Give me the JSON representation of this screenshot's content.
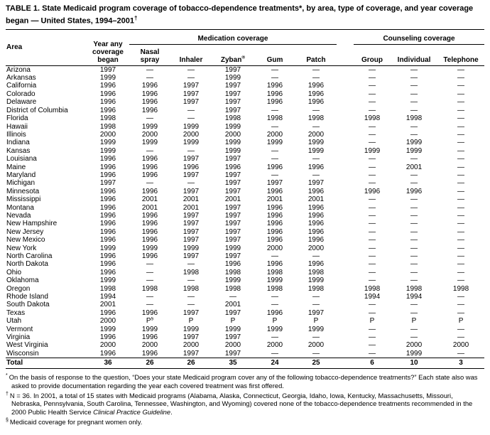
{
  "title": {
    "text": "TABLE 1. State Medicaid program coverage of tobacco-dependence treatments*, by area, type of coverage, and year coverage began — United States, 1994–2001",
    "sup": "†"
  },
  "table": {
    "groups": {
      "medication": "Medication coverage",
      "counseling": "Counseling coverage"
    },
    "headers": {
      "area": "Area",
      "year_began_lines": [
        "Year any",
        "coverage",
        "began"
      ],
      "nasal_lines": [
        "Nasal",
        "spray"
      ],
      "inhaler": "Inhaler",
      "zyban": "Zyban",
      "zyban_sup": "®",
      "gum": "Gum",
      "patch": "Patch",
      "group": "Group",
      "individual": "Individual",
      "telephone": "Telephone"
    },
    "rows": [
      [
        "Arizona",
        "1997",
        "—",
        "—",
        "1997",
        "—",
        "—",
        "—",
        "—",
        "—"
      ],
      [
        "Arkansas",
        "1999",
        "—",
        "—",
        "1999",
        "—",
        "—",
        "—",
        "—",
        "—"
      ],
      [
        "California",
        "1996",
        "1996",
        "1997",
        "1997",
        "1996",
        "1996",
        "—",
        "—",
        "—"
      ],
      [
        "Colorado",
        "1996",
        "1996",
        "1997",
        "1997",
        "1996",
        "1996",
        "—",
        "—",
        "—"
      ],
      [
        "Delaware",
        "1996",
        "1996",
        "1997",
        "1997",
        "1996",
        "1996",
        "—",
        "—",
        "—"
      ],
      [
        "District of Columbia",
        "1996",
        "1996",
        "—",
        "1997",
        "—",
        "—",
        "—",
        "—",
        "—"
      ],
      [
        "Florida",
        "1998",
        "—",
        "—",
        "1998",
        "1998",
        "1998",
        "1998",
        "1998",
        "—"
      ],
      [
        "Hawaii",
        "1998",
        "1999",
        "1999",
        "1999",
        "—",
        "—",
        "—",
        "—",
        "—"
      ],
      [
        "Illinois",
        "2000",
        "2000",
        "2000",
        "2000",
        "2000",
        "2000",
        "—",
        "—",
        "—"
      ],
      [
        "Indiana",
        "1999",
        "1999",
        "1999",
        "1999",
        "1999",
        "1999",
        "—",
        "1999",
        "—"
      ],
      [
        "Kansas",
        "1999",
        "—",
        "—",
        "1999",
        "—",
        "1999",
        "1999",
        "1999",
        "—"
      ],
      [
        "Louisiana",
        "1996",
        "1996",
        "1997",
        "1997",
        "—",
        "—",
        "—",
        "—",
        "—"
      ],
      [
        "Maine",
        "1996",
        "1996",
        "1996",
        "1996",
        "1996",
        "1996",
        "—",
        "2001",
        "—"
      ],
      [
        "Maryland",
        "1996",
        "1996",
        "1997",
        "1997",
        "—",
        "—",
        "—",
        "—",
        "—"
      ],
      [
        "Michigan",
        "1997",
        "—",
        "—",
        "1997",
        "1997",
        "1997",
        "—",
        "—",
        "—"
      ],
      [
        "Minnesota",
        "1996",
        "1996",
        "1997",
        "1997",
        "1996",
        "1996",
        "1996",
        "1996",
        "—"
      ],
      [
        "Mississippi",
        "1996",
        "2001",
        "2001",
        "2001",
        "2001",
        "2001",
        "—",
        "—",
        "—"
      ],
      [
        "Montana",
        "1996",
        "2001",
        "2001",
        "1997",
        "1996",
        "1996",
        "—",
        "—",
        "—"
      ],
      [
        "Nevada",
        "1996",
        "1996",
        "1997",
        "1997",
        "1996",
        "1996",
        "—",
        "—",
        "—"
      ],
      [
        "New Hampshire",
        "1996",
        "1996",
        "1997",
        "1997",
        "1996",
        "1996",
        "—",
        "—",
        "—"
      ],
      [
        "New Jersey",
        "1996",
        "1996",
        "1997",
        "1997",
        "1996",
        "1996",
        "—",
        "—",
        "—"
      ],
      [
        "New Mexico",
        "1996",
        "1996",
        "1997",
        "1997",
        "1996",
        "1996",
        "—",
        "—",
        "—"
      ],
      [
        "New York",
        "1999",
        "1999",
        "1999",
        "1999",
        "2000",
        "2000",
        "—",
        "—",
        "—"
      ],
      [
        "North Carolina",
        "1996",
        "1996",
        "1997",
        "1997",
        "—",
        "—",
        "—",
        "—",
        "—"
      ],
      [
        "North Dakota",
        "1996",
        "—",
        "—",
        "1996",
        "1996",
        "1996",
        "—",
        "—",
        "—"
      ],
      [
        "Ohio",
        "1996",
        "—",
        "1998",
        "1998",
        "1998",
        "1998",
        "—",
        "—",
        "—"
      ],
      [
        "Oklahoma",
        "1999",
        "—",
        "—",
        "1999",
        "1999",
        "1999",
        "—",
        "—",
        "—"
      ],
      [
        "Oregon",
        "1998",
        "1998",
        "1998",
        "1998",
        "1998",
        "1998",
        "1998",
        "1998",
        "1998"
      ],
      [
        "Rhode Island",
        "1994",
        "—",
        "—",
        "—",
        "—",
        "—",
        "1994",
        "1994",
        "—"
      ],
      [
        "South Dakota",
        "2001",
        "—",
        "—",
        "2001",
        "—",
        "—",
        "—",
        "—",
        "—"
      ],
      [
        "Texas",
        "1996",
        "1996",
        "1997",
        "1997",
        "1996",
        "1997",
        "—",
        "—",
        "—"
      ],
      [
        "Utah",
        "2000",
        "P§",
        "P",
        "P",
        "P",
        "P",
        "P",
        "P",
        "P"
      ],
      [
        "Vermont",
        "1999",
        "1999",
        "1999",
        "1999",
        "1999",
        "1999",
        "—",
        "—",
        "—"
      ],
      [
        "Virginia",
        "1996",
        "1996",
        "1997",
        "1997",
        "—",
        "—",
        "—",
        "—",
        "—"
      ],
      [
        "West Virginia",
        "2000",
        "2000",
        "2000",
        "2000",
        "2000",
        "2000",
        "—",
        "2000",
        "2000"
      ],
      [
        "Wisconsin",
        "1996",
        "1996",
        "1997",
        "1997",
        "—",
        "—",
        "—",
        "1999",
        "—"
      ]
    ],
    "total_row": [
      "Total",
      "36",
      "26",
      "26",
      "35",
      "24",
      "25",
      "6",
      "10",
      "3"
    ]
  },
  "footnotes": [
    {
      "symbol": "*",
      "text": "On the basis of response to the question, “Does your state Medicaid program cover any of the following tobacco-dependence treatments?” Each state also was asked to provide documentation regarding the year each covered treatment was first offered.",
      "italic": "",
      "text_after": ""
    },
    {
      "symbol": "†",
      "text": "N = 36. In 2001, a total of 15 states with Medicaid programs (Alabama, Alaska, Connecticut, Georgia, Idaho, Iowa, Kentucky, Massachusetts, Missouri, Nebraska, Pennsylvania, South Carolina, Tennessee, Washington, and Wyoming) covered none of the tobacco-dependence treatments recommended in the 2000 Public Health Service ",
      "italic": "Clinical Practice Guideline",
      "text_after": "."
    },
    {
      "symbol": "§",
      "text": "Medicaid coverage for pregnant women only.",
      "italic": "",
      "text_after": ""
    }
  ]
}
